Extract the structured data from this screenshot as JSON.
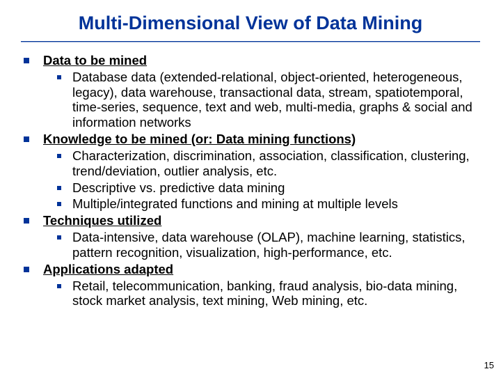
{
  "title": "Multi-Dimensional View of Data Mining",
  "title_color": "#003399",
  "bullet_color": "#003399",
  "background_color": "#ffffff",
  "title_fontsize": 27,
  "body_fontsize": 18.5,
  "page_number": "15",
  "sections": [
    {
      "heading": "Data to be mined",
      "items": [
        "Database data (extended-relational, object-oriented, heterogeneous, legacy), data warehouse, transactional data, stream, spatiotemporal, time-series, sequence, text and web, multi-media, graphs & social and information networks"
      ]
    },
    {
      "heading": "Knowledge to be mined (or: Data mining functions)",
      "items": [
        "Characterization, discrimination, association, classification, clustering, trend/deviation, outlier analysis, etc.",
        "Descriptive vs. predictive data mining",
        "Multiple/integrated functions and mining at multiple levels"
      ]
    },
    {
      "heading": "Techniques utilized",
      "items": [
        "Data-intensive, data warehouse (OLAP), machine learning, statistics, pattern recognition, visualization, high-performance, etc."
      ]
    },
    {
      "heading": "Applications adapted",
      "items": [
        "Retail, telecommunication, banking, fraud analysis, bio-data mining, stock market analysis, text mining, Web mining, etc."
      ]
    }
  ]
}
